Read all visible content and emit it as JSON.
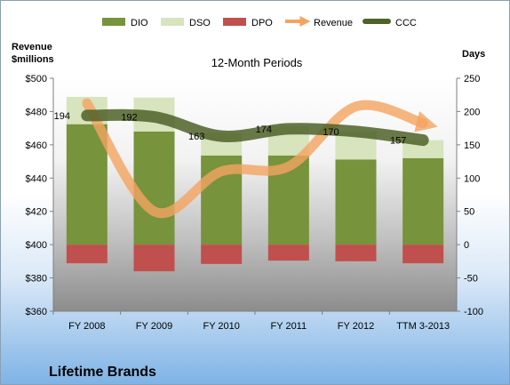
{
  "chart_data": {
    "type": "bar",
    "title": "12-Month Periods",
    "company": "Lifetime Brands",
    "left_axis_label_line1": "Revenue",
    "left_axis_label_line2": "$millions",
    "right_axis_label": "Days",
    "categories": [
      "FY 2008",
      "FY 2009",
      "FY 2010",
      "FY 2011",
      "FY 2012",
      "TTM 3-2013"
    ],
    "left_axis": {
      "min": 360,
      "max": 500,
      "step": 20,
      "ticks": [
        "$360",
        "$380",
        "$400",
        "$420",
        "$440",
        "$460",
        "$480",
        "$500"
      ]
    },
    "right_axis": {
      "min": -100,
      "max": 250,
      "step": 50,
      "ticks": [
        "-100",
        "-50",
        "0",
        "50",
        "100",
        "150",
        "200",
        "250"
      ]
    },
    "series": [
      {
        "name": "DIO",
        "axis": "right",
        "kind": "stacked-bar",
        "color": "#77933c",
        "values": [
          181,
          170,
          134,
          134,
          128,
          130
        ]
      },
      {
        "name": "DSO",
        "axis": "right",
        "kind": "stacked-bar",
        "color": "#d7e4bd",
        "values": [
          41,
          51,
          34,
          44,
          42,
          27
        ]
      },
      {
        "name": "DPO",
        "axis": "right",
        "kind": "stacked-bar",
        "color": "#c0504d",
        "values": [
          -28,
          -40,
          -29,
          -24,
          -25,
          -28
        ]
      },
      {
        "name": "Revenue",
        "axis": "left",
        "kind": "line",
        "color": "#f4a460",
        "values": [
          485,
          420,
          444,
          447,
          483,
          473
        ]
      },
      {
        "name": "CCC",
        "axis": "right",
        "kind": "line",
        "color": "#4f6228",
        "values": [
          194,
          192,
          163,
          174,
          170,
          157
        ]
      }
    ],
    "ccc_labels": [
      "194",
      "192",
      "163",
      "174",
      "170",
      "157"
    ],
    "legend_position": "top"
  }
}
